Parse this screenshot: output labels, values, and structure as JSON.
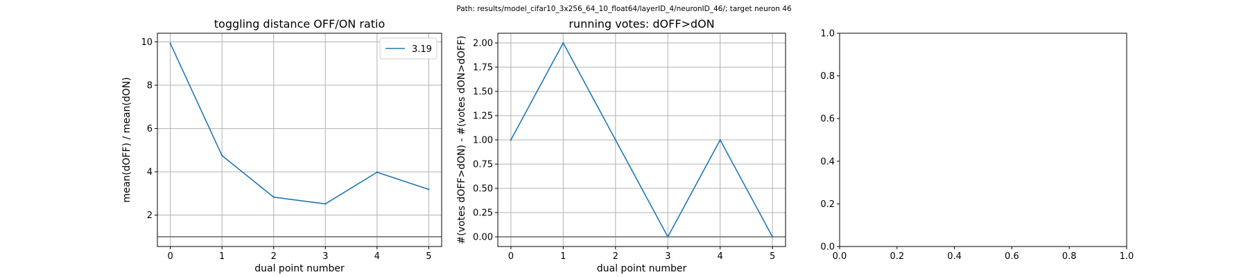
{
  "figure": {
    "suptitle": "Path: results/model_cifar10_3x256_64_10_float64/layerID_4/neuronID_46/; target neuron 46"
  },
  "colors": {
    "series": "#1f77b4",
    "hline": "#666666",
    "grid": "#b0b0b0",
    "axes": "#000000"
  },
  "chart_data": [
    {
      "type": "line",
      "title": "toggling distance OFF/ON ratio",
      "xlabel": "dual point number",
      "ylabel": "mean(dOFF) / mean(dON)",
      "x": [
        0,
        1,
        2,
        3,
        4,
        5
      ],
      "series": [
        {
          "name": "3.19",
          "values": [
            9.93,
            4.75,
            2.83,
            2.52,
            3.98,
            3.19
          ]
        }
      ],
      "hline": 1,
      "xlim": [
        -0.25,
        5.25
      ],
      "ylim": [
        0.55,
        10.4
      ],
      "xticks": [
        0,
        1,
        2,
        3,
        4,
        5
      ],
      "xtick_labels": [
        "0",
        "1",
        "2",
        "3",
        "4",
        "5"
      ],
      "yticks": [
        2,
        4,
        6,
        8,
        10
      ],
      "ytick_labels": [
        "2",
        "4",
        "6",
        "8",
        "10"
      ],
      "grid": true,
      "legend": "upper right"
    },
    {
      "type": "line",
      "title": "running votes: dOFF>dON",
      "xlabel": "dual point number",
      "ylabel": "#(votes dOFF>dON) - #(votes dON>dOFF)",
      "x": [
        0,
        1,
        2,
        3,
        4,
        5
      ],
      "series": [
        {
          "values": [
            1,
            2,
            1,
            0,
            1,
            0
          ]
        }
      ],
      "hline": 0,
      "xlim": [
        -0.25,
        5.25
      ],
      "ylim": [
        -0.1,
        2.1
      ],
      "xticks": [
        0,
        1,
        2,
        3,
        4,
        5
      ],
      "xtick_labels": [
        "0",
        "1",
        "2",
        "3",
        "4",
        "5"
      ],
      "yticks": [
        0,
        0.25,
        0.5,
        0.75,
        1,
        1.25,
        1.5,
        1.75,
        2
      ],
      "ytick_labels": [
        "0.00",
        "0.25",
        "0.50",
        "0.75",
        "1.00",
        "1.25",
        "1.50",
        "1.75",
        "2.00"
      ],
      "grid": true,
      "legend": "none"
    },
    {
      "type": "line",
      "title": "",
      "xlabel": "",
      "ylabel": "",
      "x": [],
      "series": [],
      "xlim": [
        0,
        1
      ],
      "ylim": [
        0,
        1
      ],
      "xticks": [
        0,
        0.2,
        0.4,
        0.6,
        0.8,
        1
      ],
      "xtick_labels": [
        "0.0",
        "0.2",
        "0.4",
        "0.6",
        "0.8",
        "1.0"
      ],
      "yticks": [
        0,
        0.2,
        0.4,
        0.6,
        0.8,
        1
      ],
      "ytick_labels": [
        "0.0",
        "0.2",
        "0.4",
        "0.6",
        "0.8",
        "1.0"
      ],
      "grid": false,
      "legend": "none"
    }
  ]
}
